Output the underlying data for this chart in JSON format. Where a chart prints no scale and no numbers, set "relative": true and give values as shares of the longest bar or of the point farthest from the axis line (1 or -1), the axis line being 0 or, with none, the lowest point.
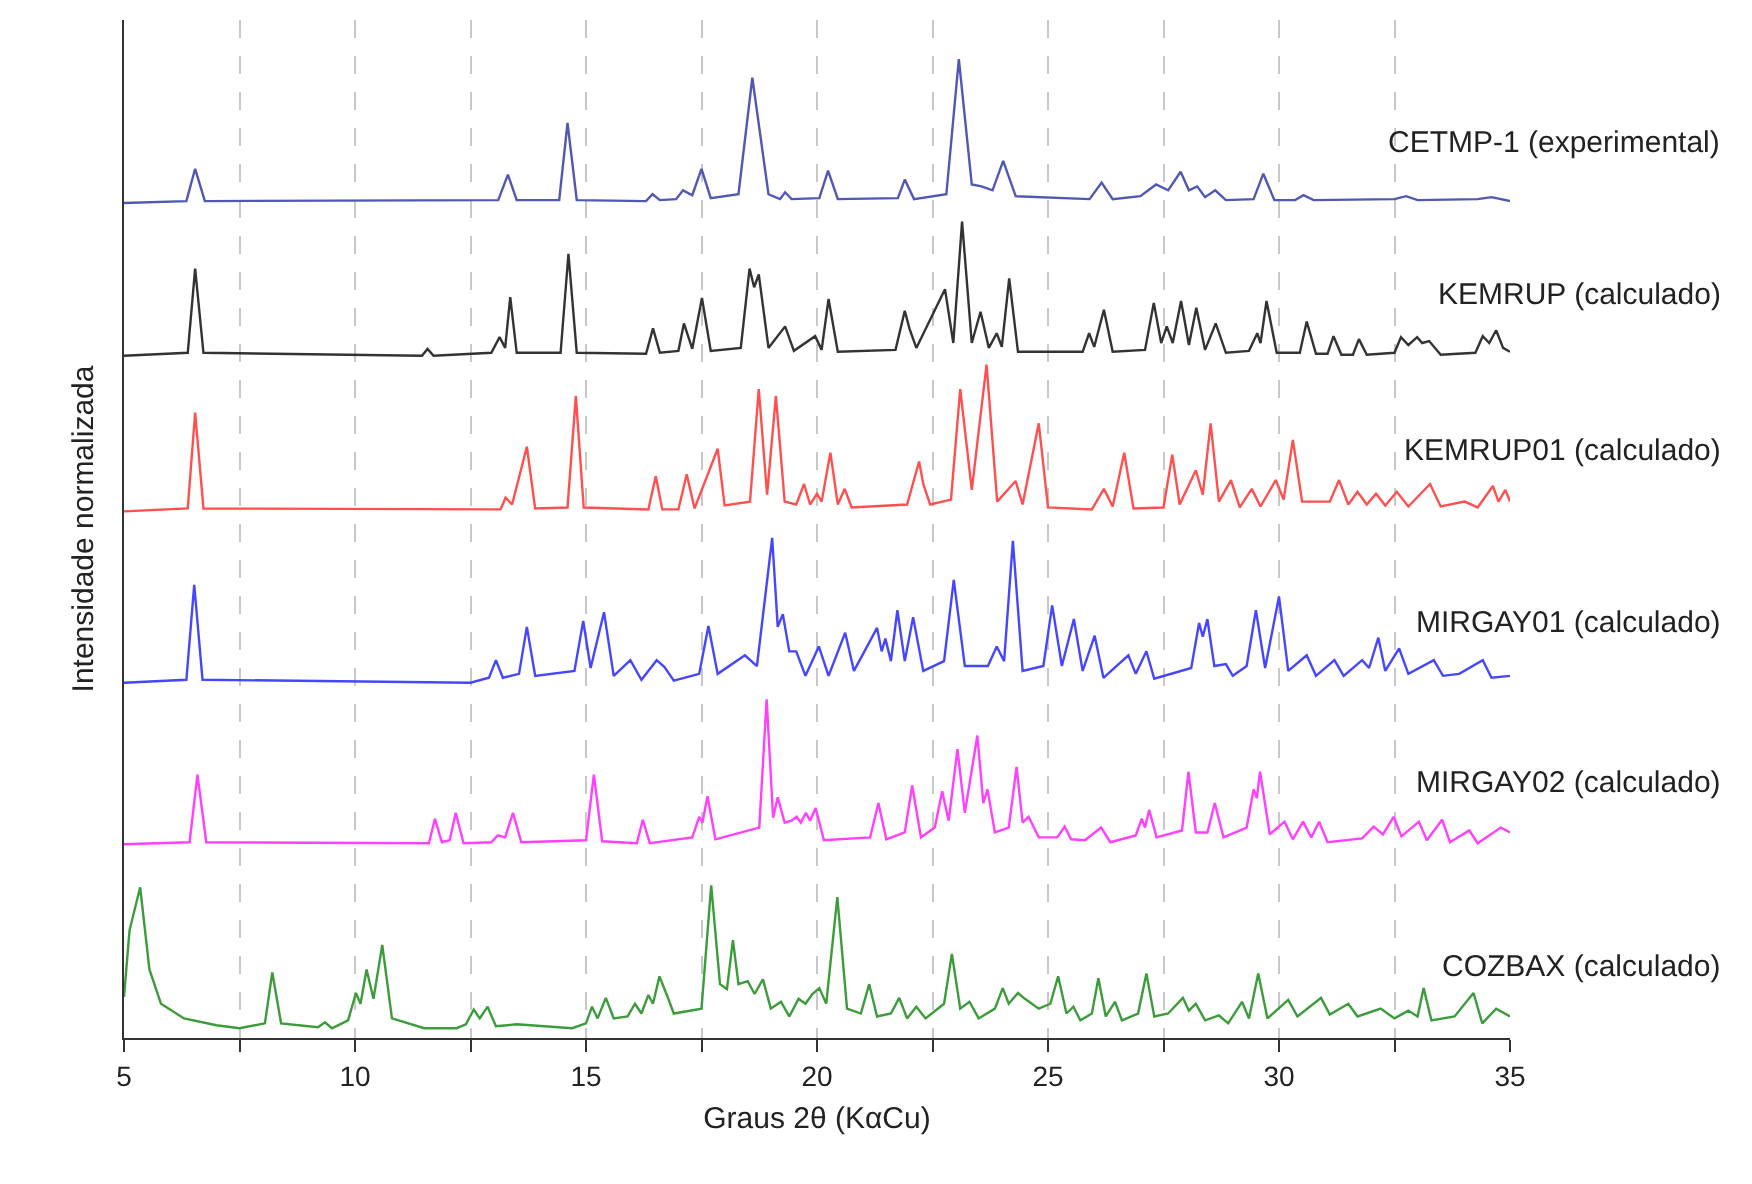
{
  "chart_data": {
    "type": "line",
    "relative": true,
    "xlabel": "Graus 2θ (KαCu)",
    "ylabel": "Intensidade normalizada",
    "xlim": [
      5,
      35
    ],
    "xticks": [
      5,
      {
        "value": 7.5,
        "label": null
      },
      10,
      {
        "value": 12.5,
        "label": null
      },
      15,
      {
        "value": 17.5,
        "label": null
      },
      20,
      {
        "value": 22.5,
        "label": null
      },
      25,
      {
        "value": 27.5,
        "label": null
      },
      30,
      {
        "value": 32.5,
        "label": null
      },
      35
    ],
    "grid": "x",
    "legend": false,
    "series": [
      {
        "name": "CETMP-1 (experimental)",
        "color": "#5058b4",
        "x": [
          5,
          6.35,
          6.54,
          6.75,
          13.1,
          13.31,
          13.5,
          14.42,
          14.6,
          14.8,
          16.3,
          16.44,
          16.6,
          16.95,
          17.1,
          17.3,
          17.5,
          17.7,
          18.3,
          18.6,
          18.95,
          19.2,
          19.31,
          19.45,
          20.05,
          20.24,
          20.45,
          21.75,
          21.9,
          22.1,
          22.8,
          23.07,
          23.35,
          23.56,
          23.8,
          24.03,
          24.3,
          25.9,
          26.16,
          26.4,
          27.0,
          27.34,
          27.6,
          27.87,
          28.05,
          28.23,
          28.4,
          28.62,
          28.85,
          29.45,
          29.66,
          29.9,
          30.35,
          30.53,
          30.75,
          32.5,
          32.75,
          33.0,
          34.3,
          34.6,
          35
        ],
        "values": [
          0.853,
          0.855,
          0.888,
          0.855,
          0.856,
          0.882,
          0.856,
          0.856,
          0.935,
          0.856,
          0.855,
          0.862,
          0.856,
          0.857,
          0.866,
          0.861,
          0.888,
          0.858,
          0.862,
          0.981,
          0.862,
          0.857,
          0.864,
          0.857,
          0.858,
          0.886,
          0.857,
          0.858,
          0.877,
          0.857,
          0.862,
          1.0,
          0.872,
          0.87,
          0.866,
          0.896,
          0.86,
          0.857,
          0.874,
          0.857,
          0.86,
          0.872,
          0.866,
          0.885,
          0.866,
          0.87,
          0.859,
          0.866,
          0.856,
          0.857,
          0.883,
          0.856,
          0.856,
          0.861,
          0.856,
          0.857,
          0.86,
          0.856,
          0.857,
          0.859,
          0.855
        ]
      },
      {
        "name": "KEMRUP (calculado)",
        "color": "#333333",
        "x": [
          5,
          6.38,
          6.54,
          6.72,
          11.45,
          11.57,
          11.7,
          12.95,
          13.13,
          13.25,
          13.36,
          13.5,
          14.45,
          14.62,
          14.8,
          16.3,
          16.45,
          16.6,
          17.0,
          17.12,
          17.3,
          17.51,
          17.7,
          18.35,
          18.54,
          18.64,
          18.74,
          18.95,
          19.31,
          19.5,
          19.96,
          20.1,
          20.25,
          20.45,
          21.7,
          21.9,
          22.0,
          22.15,
          22.77,
          22.95,
          23.14,
          23.35,
          23.54,
          23.72,
          23.89,
          24.0,
          24.16,
          24.35,
          25.75,
          25.89,
          26.0,
          26.21,
          26.4,
          27.1,
          27.29,
          27.45,
          27.57,
          27.7,
          27.88,
          28.05,
          28.21,
          28.4,
          28.63,
          28.85,
          29.35,
          29.53,
          29.6,
          29.73,
          29.95,
          30.45,
          30.6,
          30.8,
          31.05,
          31.18,
          31.35,
          31.6,
          31.73,
          31.9,
          32.5,
          32.64,
          32.8,
          32.99,
          33.1,
          33.25,
          33.5,
          34.25,
          34.41,
          34.55,
          34.7,
          34.85,
          35
        ],
        "values": [
          0.697,
          0.7,
          0.786,
          0.7,
          0.697,
          0.704,
          0.697,
          0.7,
          0.716,
          0.705,
          0.757,
          0.7,
          0.7,
          0.801,
          0.7,
          0.699,
          0.725,
          0.7,
          0.702,
          0.73,
          0.704,
          0.756,
          0.702,
          0.705,
          0.786,
          0.767,
          0.78,
          0.705,
          0.727,
          0.702,
          0.717,
          0.703,
          0.755,
          0.701,
          0.703,
          0.743,
          0.725,
          0.705,
          0.765,
          0.71,
          0.834,
          0.71,
          0.742,
          0.705,
          0.72,
          0.706,
          0.776,
          0.701,
          0.701,
          0.72,
          0.706,
          0.744,
          0.701,
          0.703,
          0.751,
          0.71,
          0.727,
          0.71,
          0.753,
          0.708,
          0.746,
          0.703,
          0.73,
          0.7,
          0.702,
          0.72,
          0.71,
          0.753,
          0.7,
          0.7,
          0.732,
          0.699,
          0.699,
          0.717,
          0.698,
          0.698,
          0.714,
          0.698,
          0.7,
          0.716,
          0.708,
          0.716,
          0.71,
          0.712,
          0.698,
          0.7,
          0.717,
          0.71,
          0.723,
          0.705,
          0.701
        ]
      },
      {
        "name": "KEMRUP01 (calculado)",
        "color": "#ff5050",
        "x": [
          5,
          6.38,
          6.54,
          6.72,
          13.15,
          13.26,
          13.4,
          13.72,
          13.9,
          14.6,
          14.78,
          14.95,
          16.35,
          16.51,
          16.65,
          17.0,
          17.18,
          17.35,
          17.85,
          18.0,
          18.55,
          18.74,
          18.92,
          19.11,
          19.3,
          19.55,
          19.72,
          19.85,
          20.0,
          20.1,
          20.29,
          20.45,
          20.6,
          20.75,
          21.95,
          22.21,
          22.3,
          22.45,
          22.9,
          23.1,
          23.35,
          23.67,
          23.9,
          24.3,
          24.45,
          24.8,
          25.0,
          25.95,
          26.21,
          26.4,
          26.65,
          26.85,
          27.5,
          27.69,
          27.85,
          28.2,
          28.35,
          28.52,
          28.7,
          28.96,
          29.15,
          29.41,
          29.6,
          29.93,
          30.1,
          30.3,
          30.5,
          31.1,
          31.3,
          31.5,
          31.7,
          31.9,
          32.1,
          32.3,
          32.55,
          32.8,
          33.27,
          33.5,
          34.02,
          34.3,
          34.63,
          34.75,
          34.9,
          35
        ],
        "values": [
          0.538,
          0.541,
          0.639,
          0.541,
          0.54,
          0.552,
          0.545,
          0.604,
          0.541,
          0.542,
          0.656,
          0.542,
          0.54,
          0.574,
          0.54,
          0.54,
          0.576,
          0.541,
          0.602,
          0.544,
          0.548,
          0.663,
          0.555,
          0.656,
          0.548,
          0.545,
          0.566,
          0.545,
          0.556,
          0.548,
          0.598,
          0.545,
          0.561,
          0.542,
          0.545,
          0.589,
          0.566,
          0.545,
          0.55,
          0.663,
          0.56,
          0.688,
          0.548,
          0.569,
          0.545,
          0.628,
          0.542,
          0.54,
          0.561,
          0.543,
          0.598,
          0.541,
          0.542,
          0.596,
          0.545,
          0.58,
          0.555,
          0.628,
          0.548,
          0.57,
          0.542,
          0.561,
          0.543,
          0.57,
          0.55,
          0.611,
          0.548,
          0.548,
          0.57,
          0.545,
          0.558,
          0.545,
          0.556,
          0.544,
          0.558,
          0.543,
          0.566,
          0.543,
          0.548,
          0.542,
          0.564,
          0.548,
          0.56,
          0.548
        ]
      },
      {
        "name": "MIRGAY01 (calculado)",
        "color": "#4646ff",
        "x": [
          5,
          6.35,
          6.52,
          6.7,
          12.5,
          12.9,
          13.05,
          13.2,
          13.55,
          13.72,
          13.9,
          14.75,
          14.94,
          15.1,
          15.39,
          15.6,
          15.96,
          16.2,
          16.53,
          16.7,
          16.9,
          17.45,
          17.65,
          17.85,
          18.44,
          18.7,
          19.03,
          19.15,
          19.26,
          19.4,
          19.55,
          19.75,
          20.04,
          20.25,
          20.61,
          20.8,
          21.3,
          21.4,
          21.48,
          21.6,
          21.74,
          21.9,
          22.08,
          22.3,
          22.75,
          22.96,
          23.2,
          23.7,
          23.89,
          24.05,
          24.24,
          24.45,
          24.9,
          25.09,
          25.3,
          25.56,
          25.75,
          26.01,
          26.2,
          26.74,
          26.9,
          27.13,
          27.3,
          28.1,
          28.27,
          28.35,
          28.45,
          28.6,
          28.85,
          29.0,
          29.3,
          29.5,
          29.7,
          30.0,
          30.2,
          30.6,
          30.8,
          31.2,
          31.4,
          31.8,
          31.95,
          32.15,
          32.3,
          32.6,
          32.8,
          33.35,
          33.55,
          33.9,
          34.41,
          34.6,
          35
        ],
        "values": [
          0.363,
          0.366,
          0.463,
          0.366,
          0.363,
          0.368,
          0.386,
          0.368,
          0.372,
          0.42,
          0.37,
          0.375,
          0.426,
          0.378,
          0.435,
          0.37,
          0.386,
          0.366,
          0.386,
          0.379,
          0.365,
          0.372,
          0.421,
          0.372,
          0.391,
          0.38,
          0.511,
          0.42,
          0.433,
          0.395,
          0.395,
          0.37,
          0.4,
          0.37,
          0.414,
          0.375,
          0.419,
          0.395,
          0.408,
          0.385,
          0.437,
          0.385,
          0.43,
          0.375,
          0.385,
          0.468,
          0.38,
          0.38,
          0.4,
          0.385,
          0.508,
          0.375,
          0.38,
          0.442,
          0.38,
          0.428,
          0.375,
          0.411,
          0.368,
          0.391,
          0.372,
          0.395,
          0.367,
          0.378,
          0.424,
          0.41,
          0.428,
          0.38,
          0.382,
          0.37,
          0.38,
          0.437,
          0.378,
          0.451,
          0.375,
          0.391,
          0.37,
          0.386,
          0.37,
          0.386,
          0.378,
          0.409,
          0.375,
          0.398,
          0.372,
          0.386,
          0.37,
          0.372,
          0.386,
          0.368,
          0.37
        ]
      },
      {
        "name": "MIRGAY02 (calculado)",
        "color": "#ff40ff",
        "x": [
          5,
          6.42,
          6.59,
          6.78,
          11.6,
          11.73,
          11.88,
          12.05,
          12.18,
          12.35,
          12.95,
          13.09,
          13.25,
          13.42,
          13.6,
          15.0,
          15.17,
          15.35,
          16.1,
          16.23,
          16.38,
          17.3,
          17.45,
          17.52,
          17.63,
          17.8,
          18.75,
          18.91,
          19.05,
          19.15,
          19.3,
          19.45,
          19.56,
          19.65,
          19.76,
          19.85,
          19.97,
          20.15,
          21.15,
          21.33,
          21.5,
          21.9,
          22.06,
          22.25,
          22.55,
          22.71,
          22.85,
          23.04,
          23.2,
          23.47,
          23.6,
          23.69,
          23.85,
          24.15,
          24.32,
          24.45,
          24.58,
          24.8,
          25.2,
          25.36,
          25.5,
          25.8,
          26.15,
          26.35,
          26.9,
          27.03,
          27.1,
          27.19,
          27.35,
          27.9,
          28.04,
          28.2,
          28.45,
          28.61,
          28.8,
          29.3,
          29.45,
          29.52,
          29.59,
          29.8,
          30.12,
          30.3,
          30.52,
          30.7,
          30.87,
          31.05,
          31.8,
          32.05,
          32.25,
          32.48,
          32.65,
          33.03,
          33.2,
          33.53,
          33.7,
          34.12,
          34.3,
          34.8,
          35
        ],
        "values": [
          0.198,
          0.2,
          0.269,
          0.2,
          0.199,
          0.224,
          0.2,
          0.202,
          0.23,
          0.199,
          0.2,
          0.207,
          0.205,
          0.23,
          0.2,
          0.202,
          0.269,
          0.201,
          0.199,
          0.223,
          0.199,
          0.205,
          0.226,
          0.22,
          0.247,
          0.203,
          0.215,
          0.346,
          0.225,
          0.246,
          0.22,
          0.222,
          0.226,
          0.22,
          0.23,
          0.222,
          0.235,
          0.202,
          0.205,
          0.24,
          0.203,
          0.21,
          0.258,
          0.205,
          0.215,
          0.252,
          0.222,
          0.295,
          0.23,
          0.309,
          0.24,
          0.254,
          0.21,
          0.215,
          0.277,
          0.22,
          0.226,
          0.205,
          0.205,
          0.216,
          0.203,
          0.202,
          0.215,
          0.2,
          0.207,
          0.224,
          0.215,
          0.233,
          0.205,
          0.212,
          0.272,
          0.21,
          0.21,
          0.24,
          0.205,
          0.215,
          0.254,
          0.245,
          0.272,
          0.208,
          0.221,
          0.203,
          0.221,
          0.205,
          0.221,
          0.2,
          0.204,
          0.216,
          0.208,
          0.226,
          0.206,
          0.221,
          0.202,
          0.223,
          0.2,
          0.212,
          0.199,
          0.215,
          0.21
        ]
      },
      {
        "name": "COZBAX (calculado)",
        "color": "#3c9c3c",
        "x": [
          5,
          5.12,
          5.35,
          5.55,
          5.8,
          6.3,
          7.0,
          7.5,
          8.05,
          8.21,
          8.4,
          9.2,
          9.35,
          9.5,
          9.85,
          10.02,
          10.12,
          10.25,
          10.4,
          10.59,
          10.8,
          11.5,
          12.2,
          12.4,
          12.57,
          12.7,
          12.87,
          13.05,
          13.5,
          14.7,
          15.0,
          15.13,
          15.25,
          15.43,
          15.6,
          15.9,
          16.06,
          16.2,
          16.35,
          16.45,
          16.59,
          16.75,
          16.9,
          17.5,
          17.71,
          17.9,
          18.05,
          18.18,
          18.3,
          18.5,
          18.65,
          18.83,
          19.0,
          19.22,
          19.4,
          19.6,
          19.75,
          19.9,
          20.05,
          20.2,
          20.44,
          20.65,
          20.95,
          21.13,
          21.3,
          21.6,
          21.78,
          21.95,
          22.15,
          22.35,
          22.75,
          22.92,
          23.1,
          23.3,
          23.5,
          23.85,
          24.02,
          24.15,
          24.35,
          24.5,
          24.8,
          25.05,
          25.22,
          25.4,
          25.55,
          25.7,
          25.95,
          26.09,
          26.25,
          26.45,
          26.6,
          26.95,
          27.13,
          27.3,
          27.6,
          27.92,
          28.05,
          28.2,
          28.4,
          28.7,
          28.9,
          29.2,
          29.35,
          29.55,
          29.75,
          30.2,
          30.4,
          30.91,
          31.1,
          31.5,
          31.7,
          32.2,
          32.5,
          32.8,
          33.0,
          33.13,
          33.3,
          33.8,
          34.21,
          34.4,
          34.7,
          35
        ],
        "values": [
          0.042,
          0.11,
          0.154,
          0.07,
          0.035,
          0.02,
          0.013,
          0.01,
          0.015,
          0.067,
          0.015,
          0.011,
          0.016,
          0.01,
          0.018,
          0.046,
          0.035,
          0.07,
          0.04,
          0.095,
          0.02,
          0.01,
          0.01,
          0.014,
          0.029,
          0.02,
          0.032,
          0.012,
          0.014,
          0.01,
          0.015,
          0.032,
          0.02,
          0.041,
          0.02,
          0.022,
          0.035,
          0.025,
          0.044,
          0.035,
          0.063,
          0.044,
          0.025,
          0.03,
          0.156,
          0.055,
          0.05,
          0.1,
          0.055,
          0.058,
          0.045,
          0.06,
          0.03,
          0.037,
          0.022,
          0.04,
          0.035,
          0.045,
          0.051,
          0.035,
          0.144,
          0.03,
          0.025,
          0.055,
          0.022,
          0.025,
          0.041,
          0.02,
          0.032,
          0.02,
          0.035,
          0.086,
          0.03,
          0.037,
          0.02,
          0.03,
          0.051,
          0.035,
          0.046,
          0.04,
          0.03,
          0.035,
          0.063,
          0.025,
          0.032,
          0.018,
          0.025,
          0.061,
          0.022,
          0.037,
          0.018,
          0.025,
          0.066,
          0.022,
          0.025,
          0.041,
          0.028,
          0.035,
          0.018,
          0.023,
          0.015,
          0.037,
          0.02,
          0.066,
          0.02,
          0.039,
          0.022,
          0.041,
          0.024,
          0.035,
          0.022,
          0.03,
          0.02,
          0.028,
          0.022,
          0.051,
          0.018,
          0.022,
          0.046,
          0.015,
          0.03,
          0.022
        ]
      }
    ]
  }
}
